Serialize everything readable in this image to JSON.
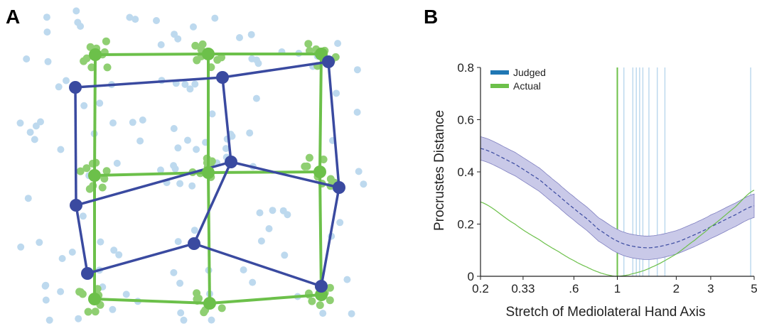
{
  "figure": {
    "panel_a_label": "A",
    "panel_b_label": "B"
  },
  "colors": {
    "blue": "#3a4aa0",
    "green": "#6cc04a",
    "light_blue": "#bdd9ee",
    "light_green": "#8fcf72",
    "band": "#c9c9e8"
  },
  "chart_data": [
    {
      "type": "scatter",
      "panel": "A",
      "description_series": [
        {
          "name": "",
          "kind": "grid",
          "color": "#6cc04a",
          "rows": [
            [
              [
                134,
                77
              ],
              [
                293,
                76
              ],
              [
                452,
                76
              ]
            ],
            [
              [
                133,
                247
              ],
              [
                293,
                243
              ],
              [
                450,
                242
              ]
            ],
            [
              [
                133,
                421
              ],
              [
                295,
                427
              ],
              [
                452,
                415
              ]
            ]
          ]
        },
        {
          "name": "",
          "kind": "grid",
          "color": "#3a4aa0",
          "rows": [
            [
              [
                106,
                123
              ],
              [
                313,
                109
              ],
              [
                462,
                87
              ]
            ],
            [
              [
                107,
                289
              ],
              [
                325,
                228
              ],
              [
                477,
                264
              ]
            ],
            [
              [
                123,
                385
              ],
              [
                273,
                343
              ],
              [
                452,
                403
              ]
            ]
          ]
        }
      ]
    },
    {
      "type": "line",
      "panel": "B",
      "xlabel": "Stretch of Mediolateral Hand Axis",
      "ylabel": "Procrustes Distance",
      "xscale": "log",
      "xlim": [
        0.2,
        5
      ],
      "ylim": [
        0,
        0.8
      ],
      "xticks": [
        0.2,
        0.33,
        0.6,
        1,
        2,
        3,
        5
      ],
      "xtick_labels": [
        "0.2",
        "0.33",
        ".6",
        "1",
        "2",
        "3",
        "5"
      ],
      "yticks": [
        0,
        0.2,
        0.4,
        0.6,
        0.8
      ],
      "ytick_labels": [
        "0",
        "0.2",
        "0.4",
        "0.6",
        "0.8"
      ],
      "legend": {
        "position": "top-left",
        "entries": [
          {
            "label": "Judged",
            "color": "#1f77b4"
          },
          {
            "label": "Actual",
            "color": "#6cc04a"
          }
        ]
      },
      "series": [
        {
          "name": "Judged",
          "x": [
            0.2,
            0.3,
            0.4,
            0.5,
            0.6,
            0.7,
            0.8,
            1.0,
            1.2,
            1.5,
            2.0,
            2.5,
            3.0,
            4.0,
            5.0
          ],
          "y": [
            0.49,
            0.43,
            0.37,
            0.31,
            0.26,
            0.22,
            0.18,
            0.135,
            0.115,
            0.11,
            0.13,
            0.16,
            0.19,
            0.235,
            0.27
          ],
          "band_halfwidth": 0.045
        },
        {
          "name": "Actual",
          "x": [
            0.2,
            0.3,
            0.4,
            0.5,
            0.6,
            0.7,
            0.8,
            0.9,
            1.0,
            1.2,
            1.5,
            2.0,
            2.5,
            3.0,
            4.0,
            5.0
          ],
          "y": [
            0.285,
            0.2,
            0.14,
            0.095,
            0.06,
            0.035,
            0.016,
            0.005,
            0.0,
            0.01,
            0.035,
            0.085,
            0.14,
            0.19,
            0.265,
            0.33
          ]
        }
      ],
      "vlines_actual": [
        1.0
      ],
      "vlines_judged": [
        1.08,
        1.2,
        1.25,
        1.3,
        1.35,
        1.45,
        1.6,
        1.75,
        4.8
      ]
    }
  ]
}
